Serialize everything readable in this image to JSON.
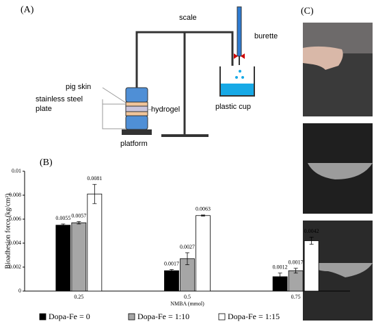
{
  "panels": [
    "(A)",
    "(B)",
    "(C)"
  ],
  "diagram": {
    "scale": "scale",
    "burette": "burette",
    "plastic_cup": "plastic cup",
    "pig_skin": "pig skin",
    "stainless_steel_plate": [
      "stainless steel",
      "plate"
    ],
    "hydrogel": "hydrogel",
    "platform": "platform"
  },
  "chart_data": {
    "type": "bar",
    "x_label": "NMBA (mmol)",
    "y_label": "Bioadhesion force (kg/cm²)",
    "categories": [
      "0.25",
      "0.5",
      "0.75"
    ],
    "series": [
      {
        "name": "Dopa-Fe = 0",
        "color": "#000000",
        "values": [
          0.0055,
          0.0017,
          0.0012
        ],
        "errors": [
          0.0001,
          0.0001,
          0.0003
        ]
      },
      {
        "name": "Dopa-Fe = 1:10",
        "color": "#a6a6a6",
        "values": [
          0.0057,
          0.0027,
          0.0017
        ],
        "errors": [
          0.0001,
          0.0005,
          0.0002
        ]
      },
      {
        "name": "Dopa-Fe = 1:15",
        "color": "#ffffff",
        "values": [
          0.0081,
          0.0063,
          0.0042
        ],
        "errors": [
          0.0008,
          5e-05,
          0.0003
        ]
      }
    ],
    "ylim": [
      0,
      0.01
    ],
    "yticks": [
      0,
      0.002,
      0.004,
      0.006,
      0.008,
      0.01
    ],
    "legend": "bottom"
  }
}
